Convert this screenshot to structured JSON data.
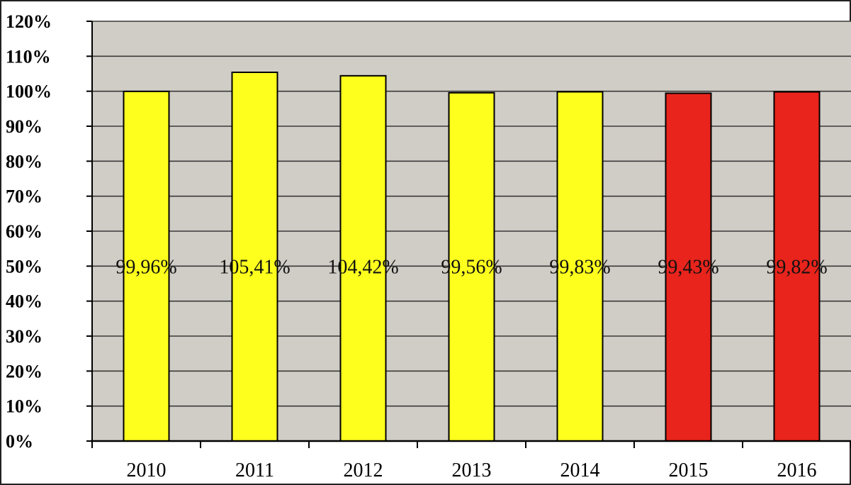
{
  "chart_data": {
    "type": "bar",
    "categories": [
      "2010",
      "2011",
      "2012",
      "2013",
      "2014",
      "2015",
      "2016"
    ],
    "values": [
      99.96,
      105.41,
      104.42,
      99.56,
      99.83,
      99.43,
      99.82
    ],
    "data_labels": [
      "99,96%",
      "105,41%",
      "104,42%",
      "99,56%",
      "99,83%",
      "99,43%",
      "99,82%"
    ],
    "bar_colors": [
      "#FFFF1E",
      "#FFFF1E",
      "#FFFF1E",
      "#FFFF1E",
      "#FFFF1E",
      "#E8241C",
      "#E8241C"
    ],
    "ylim": [
      0,
      120
    ],
    "yticks": [
      0,
      10,
      20,
      30,
      40,
      50,
      60,
      70,
      80,
      90,
      100,
      110,
      120
    ],
    "ytick_labels": [
      "0%",
      "10%",
      "20%",
      "30%",
      "40%",
      "50%",
      "60%",
      "70%",
      "80%",
      "90%",
      "100%",
      "110%",
      "120%"
    ],
    "plot_background": "#D0CCC6",
    "grid": true,
    "legend": "none"
  }
}
